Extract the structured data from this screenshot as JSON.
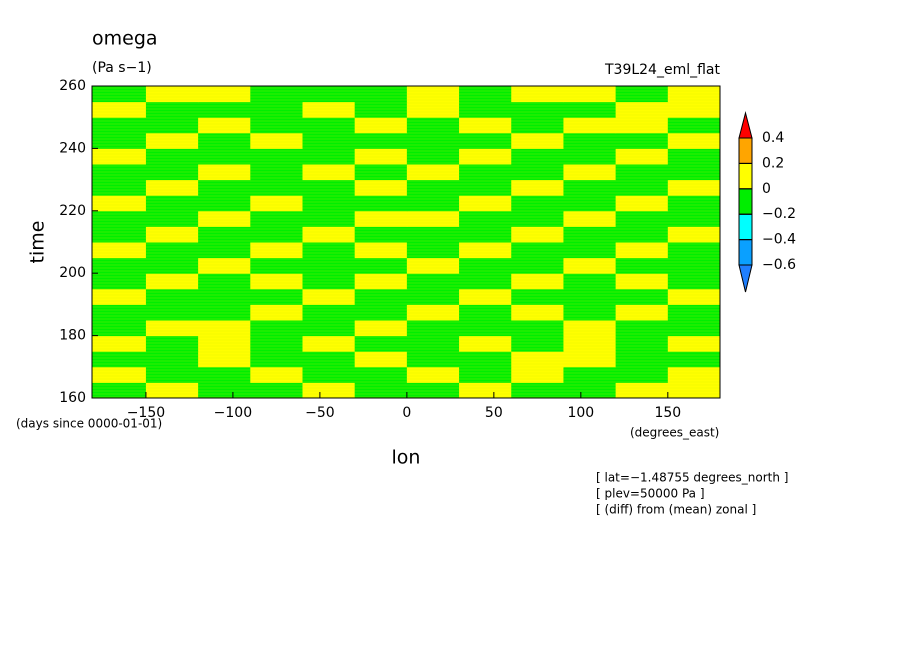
{
  "chart_data": {
    "type": "heatmap",
    "title": "omega",
    "units": "(Pa s−1)",
    "dataset": "T39L24_eml_flat",
    "x_label": "lon",
    "y_label": "time",
    "x_units": "(degrees_east)",
    "y_units": "(days since 0000-01-01)",
    "notes": [
      "[ lat=−1.48755 degrees_north ]",
      "[ plev=50000 Pa ]",
      "[ (diff) from (mean) zonal ]"
    ],
    "xlim": [
      -181,
      180
    ],
    "ylim": [
      160,
      260
    ],
    "xticks": [
      {
        "value": -150,
        "label": "−150"
      },
      {
        "value": -100,
        "label": "−100"
      },
      {
        "value": -50,
        "label": "−50"
      },
      0,
      50,
      100,
      150
    ],
    "yticks": [
      160,
      180,
      200,
      220,
      240,
      260
    ],
    "x": [
      -165,
      -135,
      -105,
      -75,
      -45,
      -15,
      15,
      45,
      75,
      105,
      135,
      165
    ],
    "y": [
      162.5,
      167.5,
      172.5,
      177.5,
      182.5,
      187.5,
      192.5,
      197.5,
      202.5,
      207.5,
      212.5,
      217.5,
      222.5,
      227.5,
      232.5,
      237.5,
      242.5,
      247.5,
      252.5,
      257.5
    ],
    "z": [
      [
        -0.1,
        0.1,
        -0.1,
        -0.1,
        0.1,
        -0.1,
        -0.1,
        0.1,
        -0.1,
        -0.1,
        0.1,
        0.1
      ],
      [
        0.1,
        -0.1,
        -0.1,
        0.1,
        -0.1,
        -0.1,
        0.1,
        -0.1,
        0.1,
        -0.1,
        -0.1,
        0.1
      ],
      [
        -0.1,
        -0.1,
        0.1,
        -0.1,
        -0.1,
        0.1,
        -0.1,
        -0.1,
        0.1,
        0.1,
        -0.1,
        -0.1
      ],
      [
        0.1,
        -0.1,
        0.1,
        -0.1,
        0.1,
        -0.1,
        -0.1,
        0.1,
        -0.1,
        0.1,
        -0.1,
        0.1
      ],
      [
        -0.1,
        0.1,
        0.1,
        -0.1,
        -0.1,
        0.1,
        -0.1,
        -0.1,
        -0.1,
        0.1,
        -0.1,
        -0.1
      ],
      [
        -0.1,
        -0.1,
        -0.1,
        0.1,
        -0.1,
        -0.1,
        0.1,
        -0.1,
        0.1,
        -0.1,
        0.1,
        -0.1
      ],
      [
        0.1,
        -0.1,
        -0.1,
        -0.1,
        0.1,
        -0.1,
        -0.1,
        0.1,
        -0.1,
        -0.1,
        -0.1,
        0.1
      ],
      [
        -0.1,
        0.1,
        -0.1,
        0.1,
        -0.1,
        0.1,
        -0.1,
        -0.1,
        0.1,
        -0.1,
        0.1,
        -0.1
      ],
      [
        -0.1,
        -0.1,
        0.1,
        -0.1,
        -0.1,
        -0.1,
        0.1,
        -0.1,
        -0.1,
        0.1,
        -0.1,
        -0.1
      ],
      [
        0.1,
        -0.1,
        -0.1,
        0.1,
        -0.1,
        0.1,
        -0.1,
        0.1,
        -0.1,
        -0.1,
        0.1,
        -0.1
      ],
      [
        -0.1,
        0.1,
        -0.1,
        -0.1,
        0.1,
        -0.1,
        -0.1,
        -0.1,
        0.1,
        -0.1,
        -0.1,
        0.1
      ],
      [
        -0.1,
        -0.1,
        0.1,
        -0.1,
        -0.1,
        0.1,
        0.1,
        -0.1,
        -0.1,
        0.1,
        -0.1,
        -0.1
      ],
      [
        0.1,
        -0.1,
        -0.1,
        0.1,
        -0.1,
        -0.1,
        -0.1,
        0.1,
        -0.1,
        -0.1,
        0.1,
        -0.1
      ],
      [
        -0.1,
        0.1,
        -0.1,
        -0.1,
        -0.1,
        0.1,
        -0.1,
        -0.1,
        0.1,
        -0.1,
        -0.1,
        0.1
      ],
      [
        -0.1,
        -0.1,
        0.1,
        -0.1,
        0.1,
        -0.1,
        0.1,
        -0.1,
        -0.1,
        0.1,
        -0.1,
        -0.1
      ],
      [
        0.1,
        -0.1,
        -0.1,
        -0.1,
        -0.1,
        0.1,
        -0.1,
        0.1,
        -0.1,
        -0.1,
        0.1,
        -0.1
      ],
      [
        -0.1,
        0.1,
        -0.1,
        0.1,
        -0.1,
        -0.1,
        -0.1,
        -0.1,
        0.1,
        -0.1,
        -0.1,
        0.1
      ],
      [
        -0.1,
        -0.1,
        0.1,
        -0.1,
        -0.1,
        0.1,
        -0.1,
        0.1,
        -0.1,
        0.1,
        0.1,
        -0.1
      ],
      [
        0.1,
        -0.1,
        -0.1,
        -0.1,
        0.1,
        -0.1,
        0.1,
        -0.1,
        -0.1,
        -0.1,
        0.1,
        0.1
      ],
      [
        -0.1,
        0.1,
        0.1,
        -0.1,
        -0.1,
        -0.1,
        0.1,
        -0.1,
        0.1,
        0.1,
        -0.1,
        0.1
      ]
    ],
    "levels": [
      {
        "value": -0.6,
        "label": "−0.6"
      },
      {
        "value": -0.4,
        "label": "−0.4"
      },
      {
        "value": -0.2,
        "label": "−0.2"
      },
      0,
      0.2,
      0.4
    ],
    "colors": [
      "#1f7fff",
      "#0aa0ff",
      "#00ffff",
      "#00ee00",
      "#ffff00",
      "#ffa500",
      "#ff0000"
    ]
  }
}
